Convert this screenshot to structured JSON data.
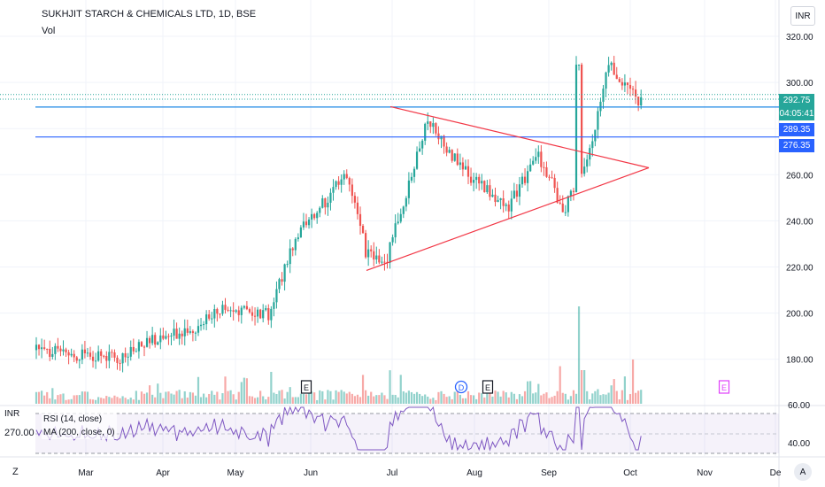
{
  "header": {
    "title": "SUKHJIT STARCH & CHEMICALS LTD, 1D, BSE",
    "vol_label": "Vol",
    "currency_button": "INR"
  },
  "price_tags": [
    {
      "label": "292.75",
      "color": "#26a69a"
    },
    {
      "label": "04:05:41",
      "color": "#26a69a"
    },
    {
      "label": "289.35",
      "color": "#2962ff"
    },
    {
      "label": "276.35",
      "color": "#2962ff"
    }
  ],
  "rsi_panel": {
    "currency_label": "INR",
    "value_readout": "270.00",
    "legend_rsi": "RSI (14, close)",
    "legend_ma": "MA (200, close, 0)",
    "ticks": [
      "60.00",
      "40.00"
    ]
  },
  "events": [
    {
      "label": "E",
      "month": "Jun"
    },
    {
      "label": "D",
      "month": "Aug"
    },
    {
      "label": "E",
      "month": "Aug"
    },
    {
      "label": "E",
      "month": "Nov"
    }
  ],
  "toolbar": {
    "zoom_button": "Z",
    "auto_button": "A"
  },
  "chart_data": {
    "type": "candlestick",
    "price_axis_ticks": [
      "320.00",
      "300.00",
      "280.00",
      "260.00",
      "240.00",
      "220.00",
      "200.00",
      "180.00"
    ],
    "x_ticks": [
      "Mar",
      "Apr",
      "May",
      "Jun",
      "Jul",
      "Aug",
      "Sep",
      "Oct",
      "Nov",
      "De"
    ],
    "ylim": [
      170,
      328
    ],
    "horizontal_levels": [
      289.35,
      276.35
    ],
    "dotted_level": 292.75,
    "colors": {
      "up": "#26a69a",
      "down": "#ef5350",
      "trendline": "#f23645",
      "level": "#2962ff",
      "rsi": "#7e57c2"
    },
    "triangle": {
      "upper": {
        "from": [
          "Jul",
          289.5
        ],
        "to": [
          "Oct",
          263
        ]
      },
      "lower": {
        "from": [
          "Jun",
          218.5
        ],
        "to": [
          "Oct",
          263
        ]
      }
    },
    "price_path": [
      {
        "month": "Feb",
        "close": 184
      },
      {
        "month": "Mar",
        "close": 180
      },
      {
        "month": "Mar",
        "close": 188
      },
      {
        "month": "Apr",
        "close": 194
      },
      {
        "month": "Apr",
        "close": 203
      },
      {
        "month": "May",
        "close": 199
      },
      {
        "month": "May",
        "close": 238
      },
      {
        "month": "Jun",
        "close": 250
      },
      {
        "month": "Jun",
        "close": 262
      },
      {
        "month": "Jun",
        "close": 226
      },
      {
        "month": "Jun",
        "close": 220
      },
      {
        "month": "Jul",
        "close": 283
      },
      {
        "month": "Jul",
        "close": 262
      },
      {
        "month": "Aug",
        "close": 245
      },
      {
        "month": "Aug",
        "close": 268
      },
      {
        "month": "Sep",
        "close": 245
      },
      {
        "month": "Sep",
        "close": 258
      },
      {
        "month": "Sep",
        "close": 275
      },
      {
        "month": "Sep",
        "close": 310
      },
      {
        "month": "Sep",
        "close": 298
      },
      {
        "month": "Oct",
        "close": 285
      },
      {
        "month": "Oct",
        "close": 292.75
      }
    ]
  }
}
